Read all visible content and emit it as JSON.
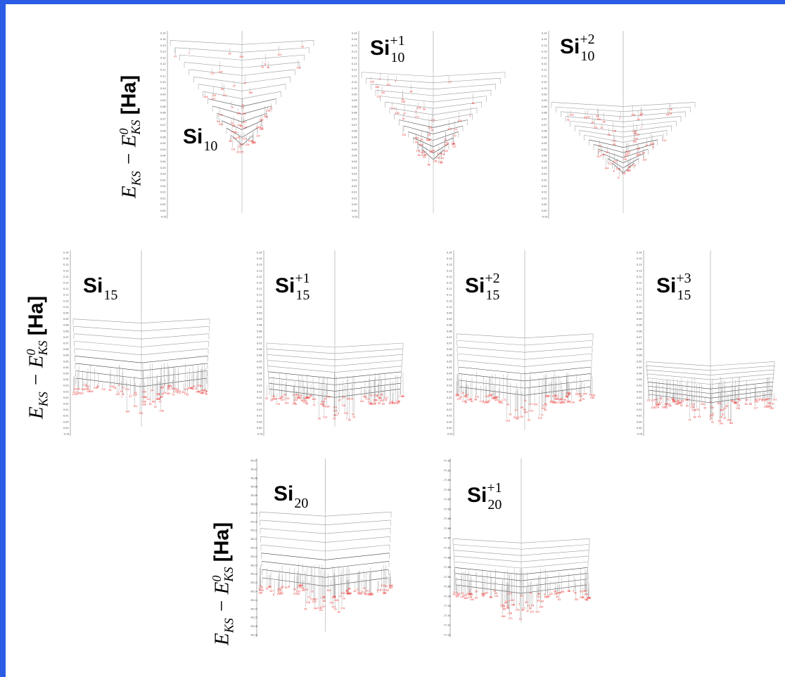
{
  "chart_data": {
    "type": "disconnectivity_graph",
    "ylabel": {
      "E": "E",
      "sub": "KS",
      "minus": " − E",
      "sup0": "0",
      "sub2": "KS",
      "unit": "[Ha]"
    },
    "panels": [
      {
        "name": "Si",
        "sub": "10",
        "sup": "",
        "ticks": [
          "0.14",
          "0.14",
          "0.13",
          "0.13",
          "0.12",
          "0.12",
          "0.11",
          "0.11",
          "0.10",
          "0.10",
          "0.09",
          "0.09",
          "0.08",
          "0.08",
          "0.07",
          "0.07",
          "0.06",
          "0.06",
          "0.05",
          "0.05",
          "0.04",
          "0.04",
          "0.03",
          "0.03",
          "0.02",
          "0.02",
          "0.01",
          "0.01",
          "0.00",
          "0.00",
          "-0.01"
        ],
        "shape": "cone",
        "top": 0.05,
        "bottom": 0.97,
        "width": 0.95
      },
      {
        "name": "Si",
        "sub": "10",
        "sup": "+1",
        "ticks": [
          "0.14",
          "0.14",
          "0.13",
          "0.13",
          "0.12",
          "0.12",
          "0.11",
          "0.11",
          "0.10",
          "0.10",
          "0.09",
          "0.09",
          "0.08",
          "0.08",
          "0.07",
          "0.07",
          "0.06",
          "0.06",
          "0.05",
          "0.05",
          "0.04",
          "0.04",
          "0.03",
          "0.03",
          "0.02",
          "0.02",
          "0.01",
          "0.01",
          "0.00",
          "0.00",
          "-0.01"
        ],
        "shape": "cone",
        "top": 0.22,
        "bottom": 0.97,
        "width": 0.95
      },
      {
        "name": "Si",
        "sub": "10",
        "sup": "+2",
        "ticks": [
          "0.14",
          "0.14",
          "0.13",
          "0.13",
          "0.12",
          "0.12",
          "0.11",
          "0.11",
          "0.10",
          "0.10",
          "0.09",
          "0.09",
          "0.08",
          "0.08",
          "0.07",
          "0.07",
          "0.06",
          "0.06",
          "0.05",
          "0.05",
          "0.04",
          "0.04",
          "0.03",
          "0.03",
          "0.02",
          "0.02",
          "0.01",
          "0.01",
          "0.00",
          "0.00",
          "-0.01"
        ],
        "shape": "cone",
        "top": 0.38,
        "bottom": 0.97,
        "width": 0.95
      },
      {
        "name": "Si",
        "sub": "15",
        "sup": "",
        "ticks": [
          "0.14",
          "0.14",
          "0.13",
          "0.13",
          "0.12",
          "0.12",
          "0.11",
          "0.11",
          "0.10",
          "0.10",
          "0.09",
          "0.09",
          "0.08",
          "0.08",
          "0.07",
          "0.07",
          "0.06",
          "0.06",
          "0.05",
          "0.05",
          "0.04",
          "0.04",
          "0.03",
          "0.03",
          "0.02",
          "0.02",
          "0.01",
          "0.01",
          "0.00",
          "0.00",
          "-0.01"
        ],
        "shape": "flat",
        "top": 0.37,
        "bottom": 0.95,
        "width": 0.95
      },
      {
        "name": "Si",
        "sub": "15",
        "sup": "+1",
        "ticks": [
          "0.14",
          "0.14",
          "0.13",
          "0.13",
          "0.12",
          "0.12",
          "0.11",
          "0.11",
          "0.10",
          "0.10",
          "0.09",
          "0.09",
          "0.08",
          "0.08",
          "0.07",
          "0.07",
          "0.06",
          "0.06",
          "0.05",
          "0.05",
          "0.04",
          "0.04",
          "0.03",
          "0.03",
          "0.02",
          "0.02",
          "0.01",
          "0.01",
          "0.00",
          "0.00",
          "-0.01"
        ],
        "shape": "flat",
        "top": 0.5,
        "bottom": 0.95,
        "width": 0.95
      },
      {
        "name": "Si",
        "sub": "15",
        "sup": "+2",
        "ticks": [
          "0.14",
          "0.14",
          "0.13",
          "0.13",
          "0.12",
          "0.12",
          "0.11",
          "0.11",
          "0.10",
          "0.10",
          "0.09",
          "0.09",
          "0.08",
          "0.08",
          "0.07",
          "0.07",
          "0.06",
          "0.06",
          "0.05",
          "0.05",
          "0.04",
          "0.04",
          "0.03",
          "0.03",
          "0.02",
          "0.02",
          "0.01",
          "0.01",
          "0.00",
          "0.00",
          "-0.01"
        ],
        "shape": "flat",
        "top": 0.45,
        "bottom": 0.97,
        "width": 0.95
      },
      {
        "name": "Si",
        "sub": "15",
        "sup": "+3",
        "ticks": [
          "0.14",
          "0.14",
          "0.13",
          "0.13",
          "0.12",
          "0.12",
          "0.11",
          "0.11",
          "0.10",
          "0.10",
          "0.09",
          "0.09",
          "0.08",
          "0.08",
          "0.07",
          "0.07",
          "0.06",
          "0.06",
          "0.05",
          "0.05",
          "0.04",
          "0.04",
          "0.03",
          "0.03",
          "0.02",
          "0.02",
          "0.01",
          "0.01",
          "0.00",
          "0.00",
          "-0.01"
        ],
        "shape": "flat",
        "top": 0.6,
        "bottom": 0.92,
        "width": 0.95
      },
      {
        "name": "Si",
        "sub": "20",
        "sup": "",
        "ticks": [
          "-78.07",
          "-78.07",
          "-78.08",
          "-78.08",
          "-78.09",
          "-78.09",
          "-78.10",
          "-78.10",
          "-78.11",
          "-78.11",
          "-78.12",
          "-78.12",
          "-78.13",
          "-78.13",
          "-78.13",
          "-78.14",
          "-78.14",
          "-78.15",
          "-78.15",
          "-78.16",
          "-78.16"
        ],
        "shape": "flat",
        "top": 0.3,
        "bottom": 0.97,
        "width": 0.97
      },
      {
        "name": "Si",
        "sub": "20",
        "sup": "+1",
        "ticks": [
          "-77.83",
          "-77.83",
          "-77.84",
          "-77.84",
          "-77.85",
          "-77.85",
          "-77.86",
          "-77.86",
          "-77.87",
          "-77.87",
          "-77.88",
          "-77.88",
          "-77.89",
          "-77.89",
          "-77.90",
          "-77.90",
          "-77.91",
          "-77.91",
          "-77.92"
        ],
        "shape": "flat",
        "top": 0.45,
        "bottom": 0.92,
        "width": 0.97
      }
    ],
    "colors": {
      "tree": "#9a9a9a",
      "minima_label": "#e8211e",
      "frame": "#2a5ce6"
    }
  }
}
